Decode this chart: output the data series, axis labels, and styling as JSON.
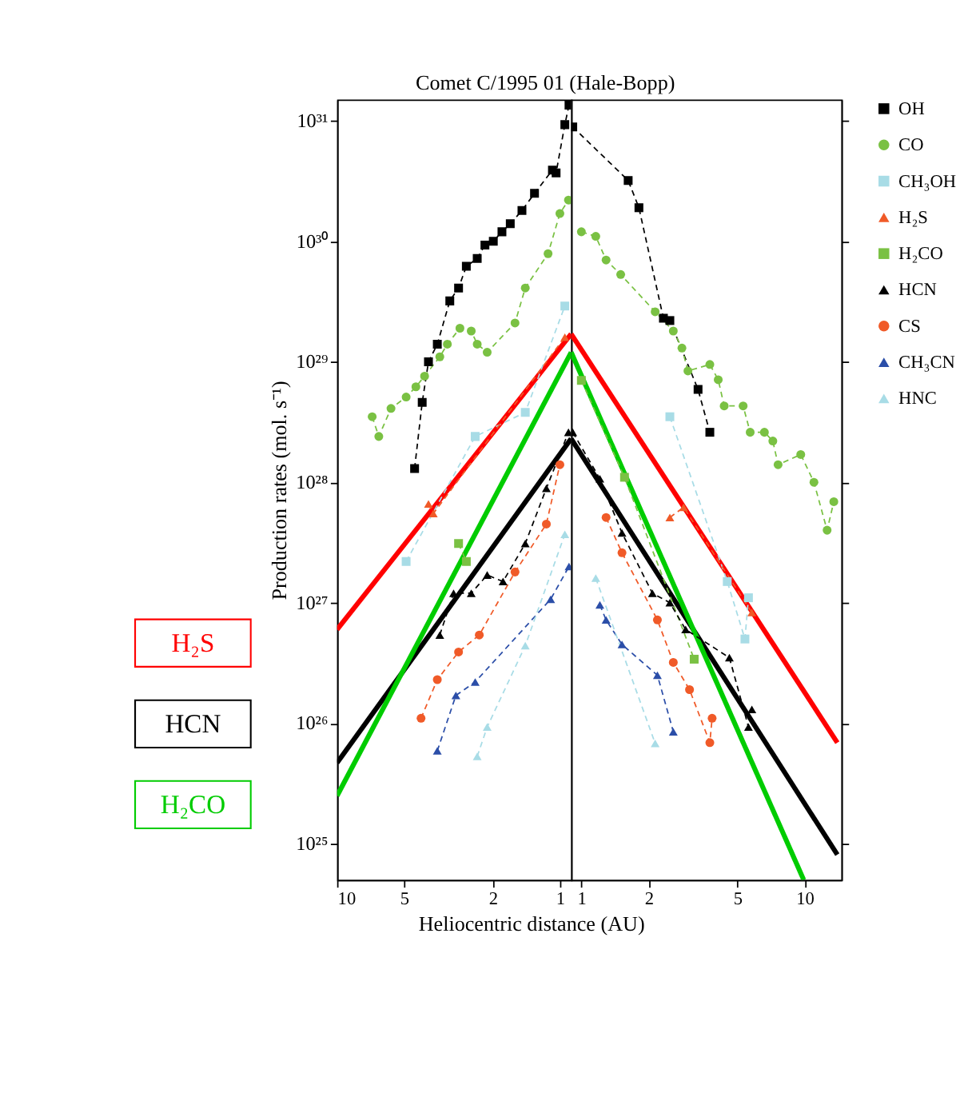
{
  "chart_data": [
    {
      "type": "line",
      "title": "Comet C/1995 01 (Hale-Bopp)",
      "ylabel": "Production rates (mol. s⁻¹)",
      "log": "xy",
      "legend": "right",
      "xlim": [
        10,
        0.89
      ],
      "xticks": [
        10,
        5,
        2,
        1
      ],
      "ylim": [
        5e+24,
        1.5e+31
      ],
      "yticks": [
        {
          "value": 1e+25,
          "label": "10²⁵"
        },
        {
          "value": 1e+26,
          "label": "10²⁶"
        },
        {
          "value": 1e+27,
          "label": "10²⁷"
        },
        {
          "value": 1e+28,
          "label": "10²⁸"
        },
        {
          "value": 1e+29,
          "label": "10²⁹"
        },
        {
          "value": 1e+30,
          "label": "10³⁰"
        },
        {
          "value": 1e+31,
          "label": "10³¹"
        }
      ],
      "series": [
        {
          "name": "OH",
          "color": "#000000",
          "marker": "square",
          "line_style": "dashed",
          "x": [
            4.49,
            4.15,
            3.89,
            3.55,
            3.12,
            2.85,
            2.63,
            2.35,
            2.17,
            1.99,
            1.82,
            1.67,
            1.48,
            1.3,
            1.08,
            1.04,
            0.95,
            0.91
          ],
          "values": [
            1.3e+28,
            4.6e+28,
            1e+29,
            1.4e+29,
            3.2e+29,
            4.1e+29,
            6.2e+29,
            7.2e+29,
            9.3e+29,
            1e+30,
            1.2e+30,
            1.4e+30,
            1.8e+30,
            2.5e+30,
            3.9e+30,
            3.7e+30,
            9.3e+30,
            1.35e+31
          ]
        },
        {
          "name": "CO",
          "color": "#7ac143",
          "marker": "circle",
          "line_style": "dashed",
          "x": [
            6.96,
            6.5,
            5.73,
            4.9,
            4.43,
            4.05,
            3.46,
            3.2,
            2.81,
            2.5,
            2.35,
            2.12,
            1.59,
            1.43,
            1.13,
            1.0,
            0.915
          ],
          "values": [
            3.5e+28,
            2.4e+28,
            4.1e+28,
            5.1e+28,
            6.2e+28,
            7.6e+28,
            1.1e+29,
            1.4e+29,
            1.9e+29,
            1.8e+29,
            1.4e+29,
            1.2e+29,
            2.1e+29,
            4.1e+29,
            7.9e+29,
            1.7e+30,
            2.2e+30
          ]
        },
        {
          "name": "CH₃OH",
          "color": "#a8dce6",
          "marker": "square",
          "line_style": "dashed",
          "x": [
            4.9,
            2.4,
            1.43,
            0.95
          ],
          "values": [
            2.2e+27,
            2.4e+28,
            3.8e+28,
            2.9e+29
          ]
        },
        {
          "name": "H₂S",
          "color": "#f05a28",
          "marker": "triangle",
          "line_style": "dashed",
          "x": [
            3.89,
            3.7,
            0.95
          ],
          "values": [
            6.6e+27,
            5.5e+27,
            1.6e+29
          ]
        },
        {
          "name": "H₂CO",
          "color": "#7ac143",
          "marker": "square",
          "line_style": "dashed",
          "x": [
            2.85,
            2.63
          ],
          "values": [
            3.1e+27,
            2.2e+27
          ]
        },
        {
          "name": "HCN",
          "color": "#000000",
          "marker": "triangle",
          "line_style": "dashed",
          "x": [
            3.46,
            3.0,
            2.5,
            2.12,
            1.8,
            1.43,
            1.15,
            0.915
          ],
          "values": [
            5.4e+26,
            1.2e+27,
            1.2e+27,
            1.7e+27,
            1.5e+27,
            3.1e+27,
            8.9e+27,
            2.6e+28
          ]
        },
        {
          "name": "CS",
          "color": "#f05a28",
          "marker": "circle",
          "line_style": "dashed",
          "x": [
            4.2,
            3.55,
            2.85,
            2.3,
            1.59,
            1.15,
            1.0
          ],
          "values": [
            1.1e+26,
            2.3e+26,
            3.9e+26,
            5.4e+26,
            1.8e+27,
            4.5e+27,
            1.4e+28
          ]
        },
        {
          "name": "CH₃CN",
          "color": "#2b4ea8",
          "marker": "triangle",
          "line_style": "dashed",
          "x": [
            3.55,
            2.93,
            2.4,
            1.1,
            0.91
          ],
          "values": [
            5.9e+25,
            1.7e+26,
            2.2e+26,
            1.07e+27,
            2e+27
          ]
        },
        {
          "name": "HNC",
          "color": "#a8dce6",
          "marker": "triangle",
          "line_style": "dashed",
          "x": [
            2.35,
            2.12,
            1.43,
            0.95
          ],
          "values": [
            5.3e+25,
            9.3e+25,
            4.4e+26,
            3.7e+27
          ]
        },
        {
          "name": "H₂S",
          "color": "#ff0000",
          "marker": "none",
          "line_style": "solid",
          "x": [
            10,
            0.89
          ],
          "values": [
            6e+26,
            1.7e+29
          ]
        },
        {
          "name": "HCN",
          "color": "#000000",
          "marker": "none",
          "line_style": "solid",
          "x": [
            10,
            0.89
          ],
          "values": [
            4.7e+25,
            2.3e+28
          ]
        },
        {
          "name": "H₂CO",
          "color": "#00cc00",
          "marker": "none",
          "line_style": "solid",
          "x": [
            10,
            0.89
          ],
          "values": [
            2.5e+25,
            1.2e+29
          ]
        }
      ]
    },
    {
      "type": "line",
      "xlabel": "Heliocentric distance (AU)",
      "log": "xy",
      "tick_labels": "x",
      "xlim": [
        0.9,
        14.6
      ],
      "xticks": [
        1,
        2,
        5,
        10
      ],
      "ylim": [
        5e+24,
        1.5e+31
      ],
      "yticks": [
        1e+25,
        1e+26,
        1e+27,
        1e+28,
        1e+29,
        1e+30,
        1e+31
      ],
      "series": [
        {
          "color": "#000000",
          "marker": "square",
          "line_style": "dashed",
          "x": [
            0.915,
            1.62,
            1.81,
            2.33,
            2.49,
            3.33,
            3.76
          ],
          "values": [
            8.9e+30,
            3.2e+30,
            1.9e+30,
            2.3e+29,
            2.2e+29,
            5.9e+28,
            2.6e+28
          ]
        },
        {
          "color": "#7ac143",
          "marker": "circle",
          "line_style": "dashed",
          "x": [
            1.0,
            1.16,
            1.29,
            1.5,
            2.14,
            2.58,
            2.82,
            3.0,
            3.76,
            4.1,
            4.36,
            5.3,
            5.7,
            6.6,
            7.2,
            7.6,
            9.6,
            11.0,
            12.6,
            13.5
          ],
          "values": [
            1.2e+30,
            1.1e+30,
            7e+29,
            5.3e+29,
            2.6e+29,
            1.8e+29,
            1.3e+29,
            8.4e+28,
            9.5e+28,
            7.1e+28,
            4.3e+28,
            4.3e+28,
            2.6e+28,
            2.6e+28,
            2.2e+28,
            1.4e+28,
            1.7e+28,
            1e+28,
            4e+27,
            6.9e+27
          ]
        },
        {
          "color": "#a8dce6",
          "marker": "square",
          "line_style": "dashed",
          "x": [
            2.49,
            4.5,
            5.4,
            5.6
          ],
          "values": [
            3.5e+28,
            1.5e+27,
            5e+26,
            1.1e+27
          ]
        },
        {
          "color": "#f05a28",
          "marker": "triangle",
          "line_style": "dashed",
          "x": [
            2.49,
            2.87,
            5.8
          ],
          "values": [
            5.1e+27,
            6.2e+27,
            8.3e+26
          ]
        },
        {
          "color": "#7ac143",
          "marker": "square",
          "line_style": "dashed",
          "x": [
            1.0,
            1.56,
            3.2
          ],
          "values": [
            7e+28,
            1.1e+28,
            3.4e+26
          ]
        },
        {
          "color": "#000000",
          "marker": "triangle",
          "line_style": "dashed",
          "x": [
            0.915,
            1.21,
            1.52,
            2.08,
            2.49,
            2.93,
            4.6,
            5.6,
            5.8
          ],
          "values": [
            2.6e+28,
            1.07e+28,
            3.8e+27,
            1.2e+27,
            1e+27,
            6e+26,
            3.5e+26,
            9.3e+25,
            1.3e+26
          ]
        },
        {
          "color": "#f05a28",
          "marker": "circle",
          "line_style": "dashed",
          "x": [
            1.29,
            1.52,
            2.19,
            2.58,
            3.05,
            3.76,
            3.85
          ],
          "values": [
            5.1e+27,
            2.6e+27,
            7.2e+26,
            3.2e+26,
            1.9e+26,
            6.9e+25,
            1.1e+26
          ]
        },
        {
          "color": "#2b4ea8",
          "marker": "triangle",
          "line_style": "dashed",
          "x": [
            1.21,
            1.29,
            1.52,
            2.19,
            2.58
          ],
          "values": [
            9.6e+26,
            7.2e+26,
            4.5e+26,
            2.5e+26,
            8.5e+25
          ]
        },
        {
          "color": "#a8dce6",
          "marker": "triangle",
          "line_style": "dashed",
          "x": [
            1.16,
            2.14
          ],
          "values": [
            1.6e+27,
            6.8e+25
          ]
        },
        {
          "color": "#ff0000",
          "marker": "none",
          "line_style": "solid",
          "x": [
            0.9,
            14.0
          ],
          "values": [
            1.7e+29,
            6.9e+25
          ]
        },
        {
          "color": "#000000",
          "marker": "none",
          "line_style": "solid",
          "x": [
            0.9,
            14.0
          ],
          "values": [
            2.3e+28,
            8.1e+24
          ]
        },
        {
          "color": "#00cc00",
          "marker": "none",
          "line_style": "solid",
          "x": [
            0.9,
            9.9
          ],
          "values": [
            1.2e+29,
            5e+24
          ]
        }
      ]
    }
  ]
}
